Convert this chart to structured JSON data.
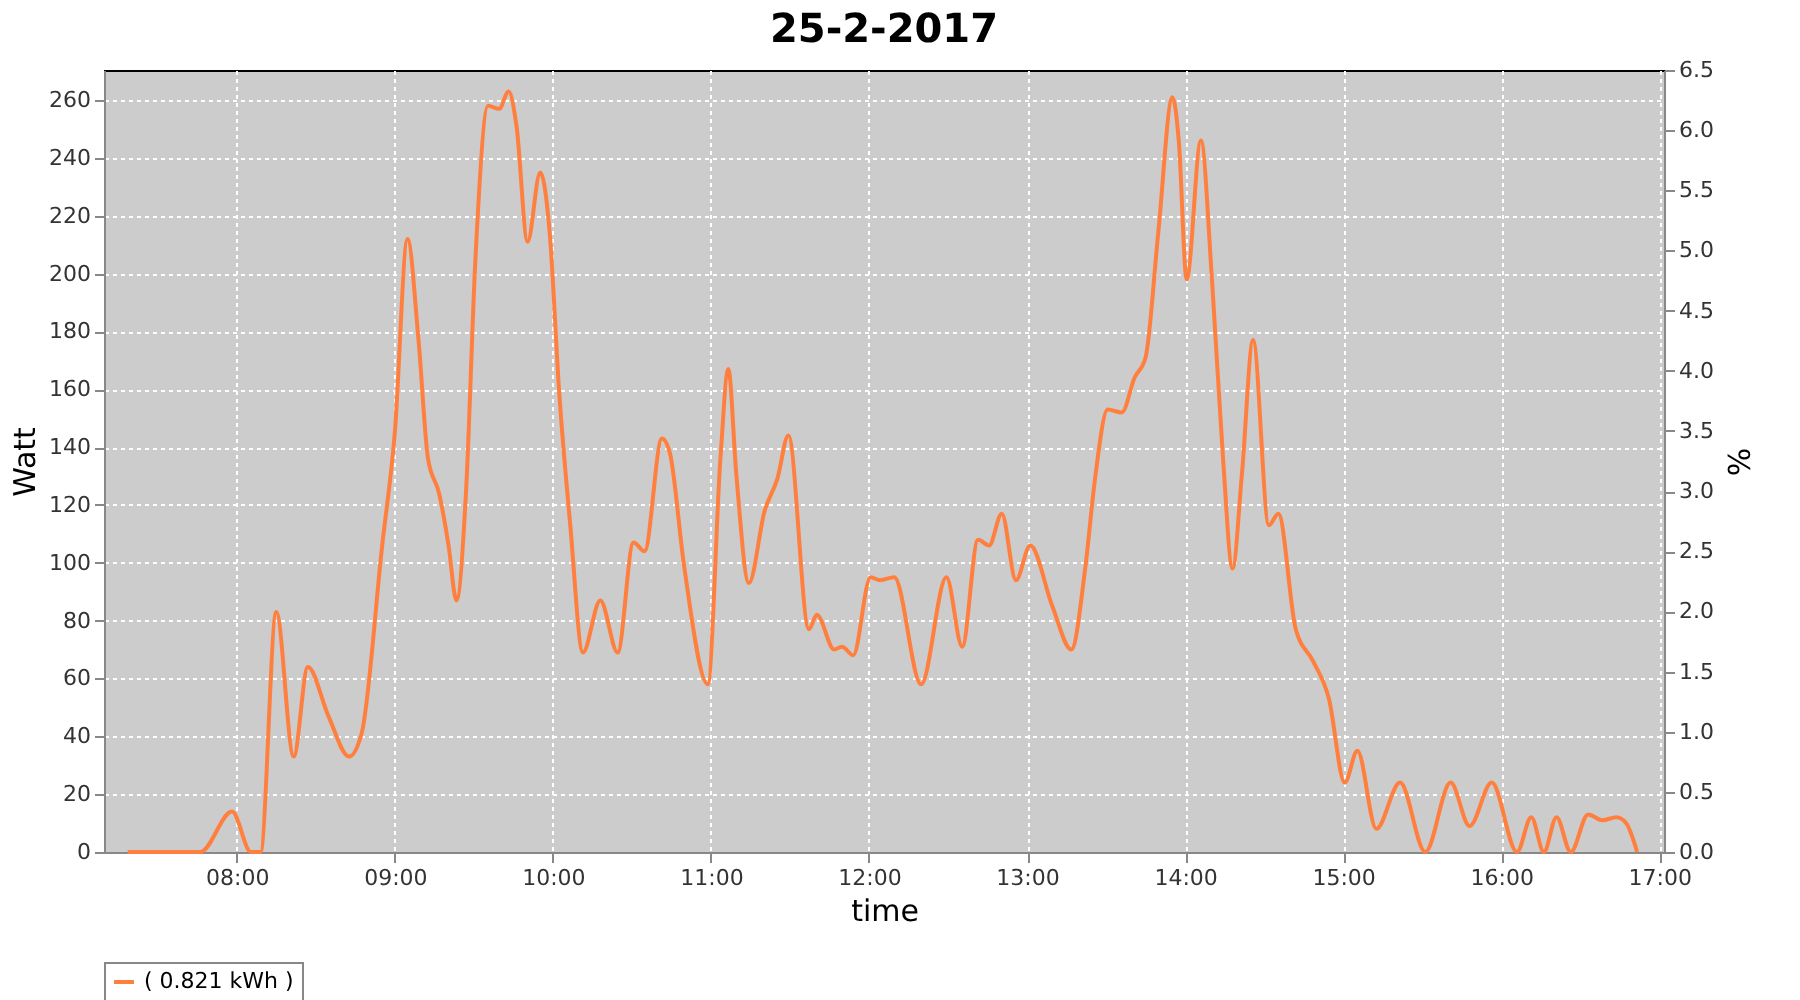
{
  "chart_data": {
    "type": "line",
    "title": "25-2-2017",
    "xlabel": "time",
    "ylabel": "Watt",
    "y2label": "%",
    "x": [
      7.31,
      7.77,
      7.97,
      8.09,
      8.15,
      8.25,
      8.36,
      8.45,
      8.58,
      8.71,
      8.79,
      8.92,
      9.0,
      9.08,
      9.15,
      9.21,
      9.28,
      9.34,
      9.39,
      9.45,
      9.51,
      9.59,
      9.66,
      9.72,
      9.77,
      9.84,
      9.92,
      9.98,
      10.04,
      10.11,
      10.19,
      10.3,
      10.41,
      10.51,
      10.58,
      10.69,
      10.74,
      10.83,
      10.98,
      11.06,
      11.11,
      11.16,
      11.24,
      11.34,
      11.42,
      11.49,
      11.62,
      11.67,
      11.78,
      11.83,
      11.9,
      12.01,
      12.07,
      12.16,
      12.33,
      12.49,
      12.59,
      12.69,
      12.76,
      12.84,
      12.93,
      13.02,
      13.16,
      13.28,
      13.37,
      13.43,
      13.51,
      13.6,
      13.68,
      13.75,
      13.83,
      13.92,
      13.96,
      14.01,
      14.1,
      14.17,
      14.24,
      14.3,
      14.36,
      14.43,
      14.53,
      14.59,
      14.7,
      14.81,
      14.91,
      15.01,
      15.09,
      15.21,
      15.36,
      15.52,
      15.68,
      15.8,
      15.94,
      16.1,
      16.19,
      16.27,
      16.35,
      16.44,
      16.55,
      16.64,
      16.73,
      16.79,
      16.86
    ],
    "series": [
      {
        "name": "( 0.821 kWh )",
        "color": "#ff7f3f",
        "values": [
          0,
          0,
          14,
          0,
          0,
          83,
          33,
          64,
          47,
          33,
          41,
          106,
          145,
          212,
          177,
          136,
          124,
          106,
          87,
          124,
          205,
          258,
          257,
          263,
          251,
          211,
          235,
          214,
          159,
          113,
          69,
          87,
          69,
          107,
          104,
          143,
          138,
          99,
          58,
          136,
          167,
          131,
          93,
          118,
          129,
          144,
          77,
          82,
          70,
          71,
          68,
          95,
          94,
          95,
          58,
          95,
          71,
          108,
          106,
          117,
          94,
          106,
          85,
          70,
          99,
          129,
          153,
          152,
          164,
          171,
          214,
          261,
          246,
          198,
          246,
          198,
          136,
          98,
          131,
          177,
          113,
          117,
          77,
          66,
          53,
          24,
          35,
          8,
          24,
          0,
          24,
          9,
          24,
          0,
          12,
          0,
          12,
          0,
          13,
          11,
          12,
          10,
          0
        ]
      }
    ],
    "xlim": [
      7.16,
      17.03
    ],
    "xticks": [
      {
        "value": 8,
        "label": "08:00"
      },
      {
        "value": 9,
        "label": "09:00"
      },
      {
        "value": 10,
        "label": "10:00"
      },
      {
        "value": 11,
        "label": "11:00"
      },
      {
        "value": 12,
        "label": "12:00"
      },
      {
        "value": 13,
        "label": "13:00"
      },
      {
        "value": 14,
        "label": "14:00"
      },
      {
        "value": 15,
        "label": "15:00"
      },
      {
        "value": 16,
        "label": "16:00"
      },
      {
        "value": 17,
        "label": "17:00"
      }
    ],
    "ylim": [
      0,
      270.4
    ],
    "yticks": [
      0,
      20,
      40,
      60,
      80,
      100,
      120,
      140,
      160,
      180,
      200,
      220,
      240,
      260
    ],
    "y2lim": [
      0,
      6.5
    ],
    "y2ticks": [
      {
        "value": 0,
        "label": "0.0"
      },
      {
        "value": 0.5,
        "label": "0.5"
      },
      {
        "value": 1,
        "label": "1.0"
      },
      {
        "value": 1.5,
        "label": "1.5"
      },
      {
        "value": 2,
        "label": "2.0"
      },
      {
        "value": 2.5,
        "label": "2.5"
      },
      {
        "value": 3,
        "label": "3.0"
      },
      {
        "value": 3.5,
        "label": "3.5"
      },
      {
        "value": 4,
        "label": "4.0"
      },
      {
        "value": 4.5,
        "label": "4.5"
      },
      {
        "value": 5,
        "label": "5.0"
      },
      {
        "value": 5.5,
        "label": "5.5"
      },
      {
        "value": 6,
        "label": "6.0"
      },
      {
        "value": 6.5,
        "label": "6.5"
      }
    ],
    "grid": true,
    "legend": "bottom",
    "marker": "none",
    "line_style": "solid"
  }
}
